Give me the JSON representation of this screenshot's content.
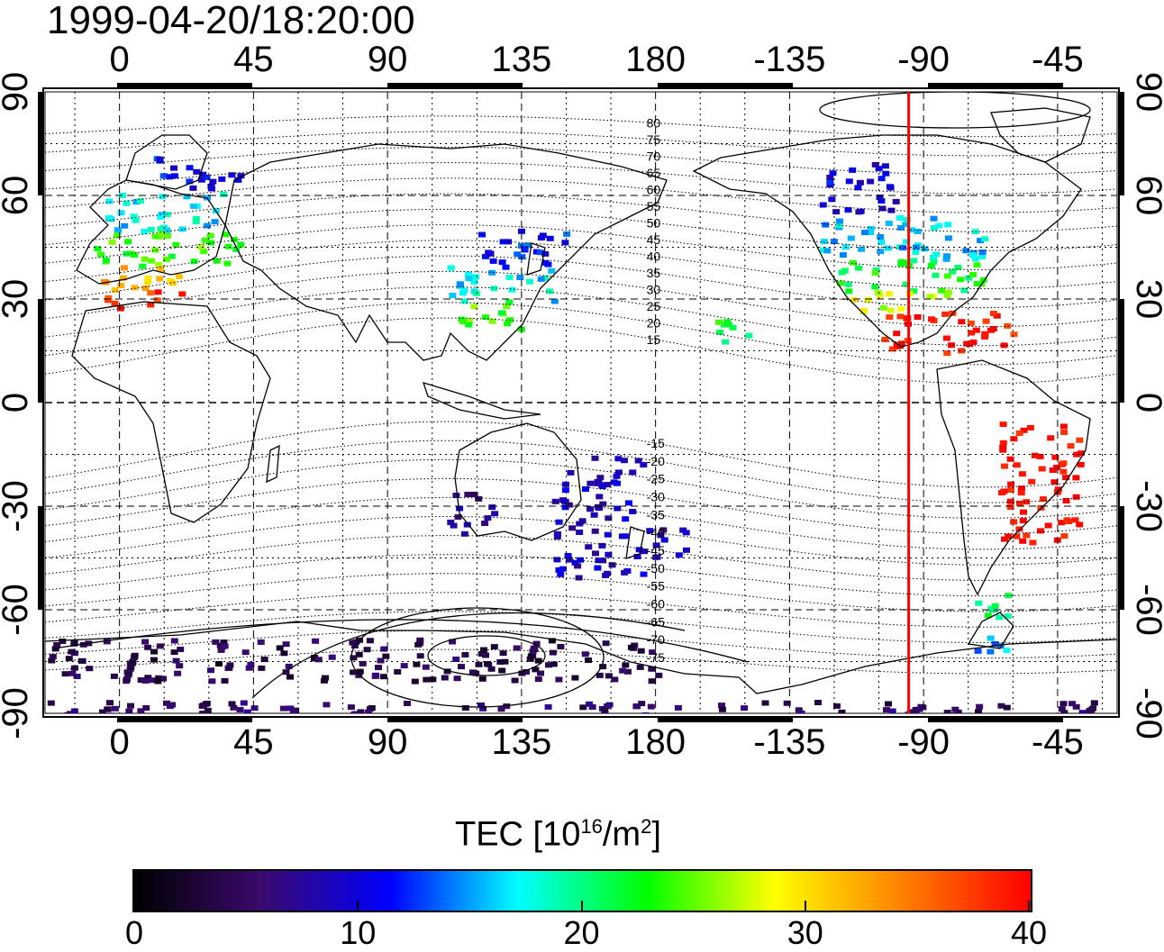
{
  "timestamp": "1999-04-20/18:20:00",
  "colorbar": {
    "title_prefix": "TEC  [10",
    "title_exp1": "16",
    "title_mid": "/m",
    "title_exp2": "2",
    "title_suffix": "]",
    "ticks": [
      "0",
      "10",
      "20",
      "30",
      "40"
    ],
    "vmin": 0,
    "vmax": 40,
    "colormap": [
      "#000000",
      "#3a0a6e",
      "#0000ff",
      "#00ffff",
      "#00ff00",
      "#ffff00",
      "#ff8000",
      "#ff0000"
    ]
  },
  "chart_data": {
    "type": "heatmap",
    "title": "1999-04-20/18:20:00",
    "x_ticks_top": [
      "0",
      "45",
      "90",
      "135",
      "180",
      "-135",
      "-90",
      "-45"
    ],
    "x_ticks_bottom": [
      "0",
      "45",
      "90",
      "135",
      "180",
      "-135",
      "-90",
      "-45"
    ],
    "y_ticks_left": [
      "90",
      "60",
      "30",
      "0",
      "-30",
      "-60",
      "-90"
    ],
    "y_ticks_right": [
      "90",
      "60",
      "30",
      "0",
      "-30",
      "-60",
      "-90"
    ],
    "lon_range": [
      -25,
      335
    ],
    "lat_range": [
      -90,
      90
    ],
    "grid": true,
    "magnetic_latitude_labels": [
      "80",
      "75",
      "70",
      "65",
      "60",
      "55",
      "50",
      "45",
      "40",
      "35",
      "30",
      "25",
      "20",
      "15",
      "-15",
      "-20",
      "-25",
      "-30",
      "-35",
      "-40",
      "-45",
      "-50",
      "-55",
      "-60",
      "-65",
      "-70",
      "-75"
    ],
    "noon_meridian_lon": -95,
    "tec_regions": [
      {
        "lon_min": 10,
        "lon_max": 40,
        "lat_min": 62,
        "lat_max": 72,
        "tec": 11
      },
      {
        "lon_min": -5,
        "lon_max": 35,
        "lat_min": 50,
        "lat_max": 62,
        "tec": 17
      },
      {
        "lon_min": -10,
        "lon_max": 40,
        "lat_min": 40,
        "lat_max": 50,
        "tec": 24
      },
      {
        "lon_min": -10,
        "lon_max": 20,
        "lat_min": 33,
        "lat_max": 40,
        "tec": 32
      },
      {
        "lon_min": -5,
        "lon_max": 20,
        "lat_min": 28,
        "lat_max": 33,
        "tec": 38
      },
      {
        "lon_min": 120,
        "lon_max": 150,
        "lat_min": 40,
        "lat_max": 52,
        "tec": 12
      },
      {
        "lon_min": 110,
        "lon_max": 145,
        "lat_min": 30,
        "lat_max": 40,
        "tec": 17
      },
      {
        "lon_min": 110,
        "lon_max": 135,
        "lat_min": 22,
        "lat_max": 30,
        "tec": 24
      },
      {
        "lon_min": -125,
        "lon_max": -100,
        "lat_min": 55,
        "lat_max": 70,
        "tec": 10
      },
      {
        "lon_min": -125,
        "lon_max": -70,
        "lat_min": 42,
        "lat_max": 55,
        "tec": 16
      },
      {
        "lon_min": -120,
        "lon_max": -70,
        "lat_min": 33,
        "lat_max": 42,
        "tec": 22
      },
      {
        "lon_min": -115,
        "lon_max": -80,
        "lat_min": 27,
        "lat_max": 33,
        "tec": 28
      },
      {
        "lon_min": -105,
        "lon_max": -60,
        "lat_min": 15,
        "lat_max": 27,
        "tec": 39
      },
      {
        "lon_min": -65,
        "lon_max": -38,
        "lat_min": -40,
        "lat_max": -5,
        "tec": 40
      },
      {
        "lon_min": -75,
        "lon_max": -60,
        "lat_min": -62,
        "lat_max": -55,
        "tec": 20
      },
      {
        "lon_min": -75,
        "lon_max": -60,
        "lat_min": -72,
        "lat_max": -67,
        "tec": 15
      },
      {
        "lon_min": 145,
        "lon_max": 175,
        "lat_min": -50,
        "lat_max": -15,
        "tec": 9
      },
      {
        "lon_min": 175,
        "lon_max": 190,
        "lat_min": -45,
        "lat_max": -35,
        "tec": 8
      },
      {
        "lon_min": 110,
        "lon_max": 125,
        "lat_min": -38,
        "lat_max": -25,
        "tec": 7
      },
      {
        "lon_min": -25,
        "lon_max": 180,
        "lat_min": -80,
        "lat_max": -68,
        "tec": 4
      },
      {
        "lon_min": -25,
        "lon_max": 335,
        "lat_min": -90,
        "lat_max": -86,
        "tec": 5
      },
      {
        "lon_min": 200,
        "lon_max": 215,
        "lat_min": 18,
        "lat_max": 25,
        "tec": 22
      }
    ]
  }
}
